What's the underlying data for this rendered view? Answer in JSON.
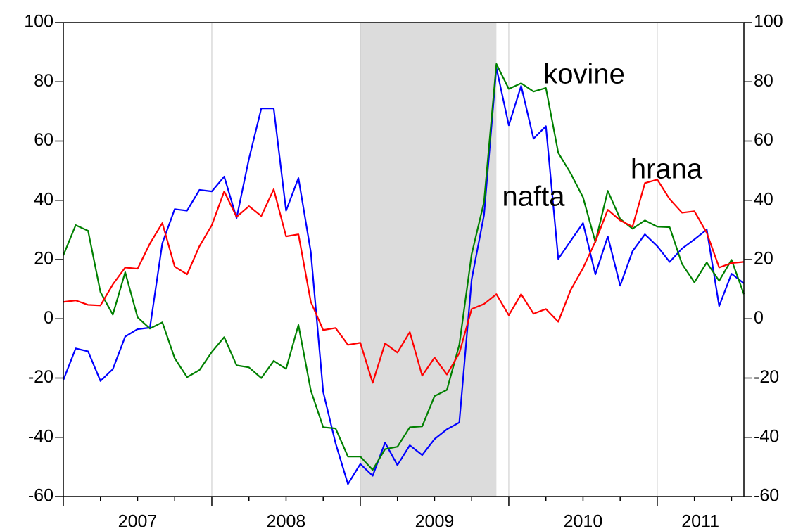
{
  "chart_data": {
    "type": "line",
    "x": [
      2007,
      2007.0833,
      2007.1667,
      2007.25,
      2007.3333,
      2007.4167,
      2007.5,
      2007.5833,
      2007.6667,
      2007.75,
      2007.8333,
      2007.9167,
      2008,
      2008.0833,
      2008.1667,
      2008.25,
      2008.3333,
      2008.4167,
      2008.5,
      2008.5833,
      2008.6667,
      2008.75,
      2008.8333,
      2008.9167,
      2009,
      2009.0833,
      2009.1667,
      2009.25,
      2009.3333,
      2009.4167,
      2009.5,
      2009.5833,
      2009.6667,
      2009.75,
      2009.8333,
      2009.9167,
      2010,
      2010.0833,
      2010.1667,
      2010.25,
      2010.3333,
      2010.4167,
      2010.5,
      2010.5833,
      2010.6667,
      2010.75,
      2010.8333,
      2010.9167,
      2011,
      2011.0833,
      2011.1667,
      2011.25,
      2011.3333,
      2011.4167,
      2011.5,
      2011.5833
    ],
    "series": [
      {
        "name": "nafta",
        "color": "#0000ff",
        "values": [
          -20.7,
          -10,
          -11,
          -21,
          -17,
          -6,
          -3.5,
          -3,
          25.5,
          37,
          36.5,
          43.5,
          43,
          48,
          34,
          54,
          71,
          71,
          36.5,
          47.5,
          22.5,
          -24.7,
          -42,
          -55.8,
          -49,
          -53,
          -41.8,
          -49.4,
          -42.7,
          -46,
          -40.6,
          -37.3,
          -35,
          13.3,
          35,
          84.7,
          65.3,
          78.6,
          60.8,
          65,
          20.2,
          26.3,
          32.3,
          15,
          27.8,
          11.2,
          22.8,
          28.5,
          24.5,
          19.2,
          23.7,
          26.8,
          30.1,
          4.3,
          15.2,
          12
        ]
      },
      {
        "name": "kovine",
        "color": "#008000",
        "values": [
          21.4,
          31.6,
          29.7,
          9,
          1.4,
          15.7,
          0.5,
          -3.3,
          -1.2,
          -13.3,
          -19.7,
          -17.3,
          -11.2,
          -6.2,
          -15.7,
          -16.4,
          -20,
          -14.2,
          -16.9,
          -2.1,
          -24.2,
          -36.6,
          -37,
          -46.5,
          -46.5,
          -51,
          -44,
          -43.2,
          -36.6,
          -36.3,
          -26.1,
          -24,
          -8.8,
          21.8,
          39.4,
          86,
          77.6,
          79.5,
          76.7,
          77.9,
          56,
          49.1,
          41,
          25.9,
          43.2,
          33.7,
          30.4,
          33.2,
          31.1,
          30.9,
          18.5,
          12.3,
          19,
          12.8,
          19.9,
          8.3
        ]
      },
      {
        "name": "hrana",
        "color": "#ff0000",
        "values": [
          5.7,
          6.2,
          4.7,
          4.5,
          11.6,
          17.3,
          16.9,
          25.4,
          32.3,
          17.6,
          15,
          24.5,
          31.6,
          43,
          34.4,
          38,
          34.7,
          43.7,
          27.8,
          28.5,
          5.7,
          -3.8,
          -3.1,
          -8.8,
          -8.1,
          -21.6,
          -8.3,
          -11.4,
          -4.5,
          -19.2,
          -13.1,
          -18.8,
          -11.6,
          3.3,
          5,
          8.3,
          1.2,
          8.3,
          1.7,
          3.3,
          -1,
          9.7,
          17.1,
          26.1,
          36.8,
          33.2,
          31.1,
          45.8,
          47,
          40.4,
          35.8,
          36.3,
          29,
          17.3,
          18.8,
          19.2
        ]
      }
    ],
    "xlim": [
      2007,
      2011.5833
    ],
    "xticks": [
      2007,
      2008,
      2009,
      2010,
      2011
    ],
    "xminorticks": [
      2007.25,
      2007.5,
      2007.75,
      2008.25,
      2008.5,
      2008.75,
      2009.25,
      2009.5,
      2009.75,
      2010.25,
      2010.5,
      2010.75,
      2011.25,
      2011.5
    ],
    "xlabels": [
      {
        "value": 2007.5,
        "label": "2007"
      },
      {
        "value": 2008.5,
        "label": "2008"
      },
      {
        "value": 2009.5,
        "label": "2009"
      },
      {
        "value": 2010.5,
        "label": "2010"
      },
      {
        "value": 2011.29,
        "label": "2011"
      }
    ],
    "ylim": [
      -60,
      100
    ],
    "yticks": [
      -60,
      -40,
      -20,
      0,
      20,
      40,
      60,
      80,
      100
    ],
    "y2lim": [
      -60,
      100
    ],
    "y2ticks": [
      -60,
      -40,
      -20,
      0,
      20,
      40,
      60,
      80,
      100
    ],
    "shade": [
      2009,
      2009.9167
    ],
    "grid": true
  }
}
